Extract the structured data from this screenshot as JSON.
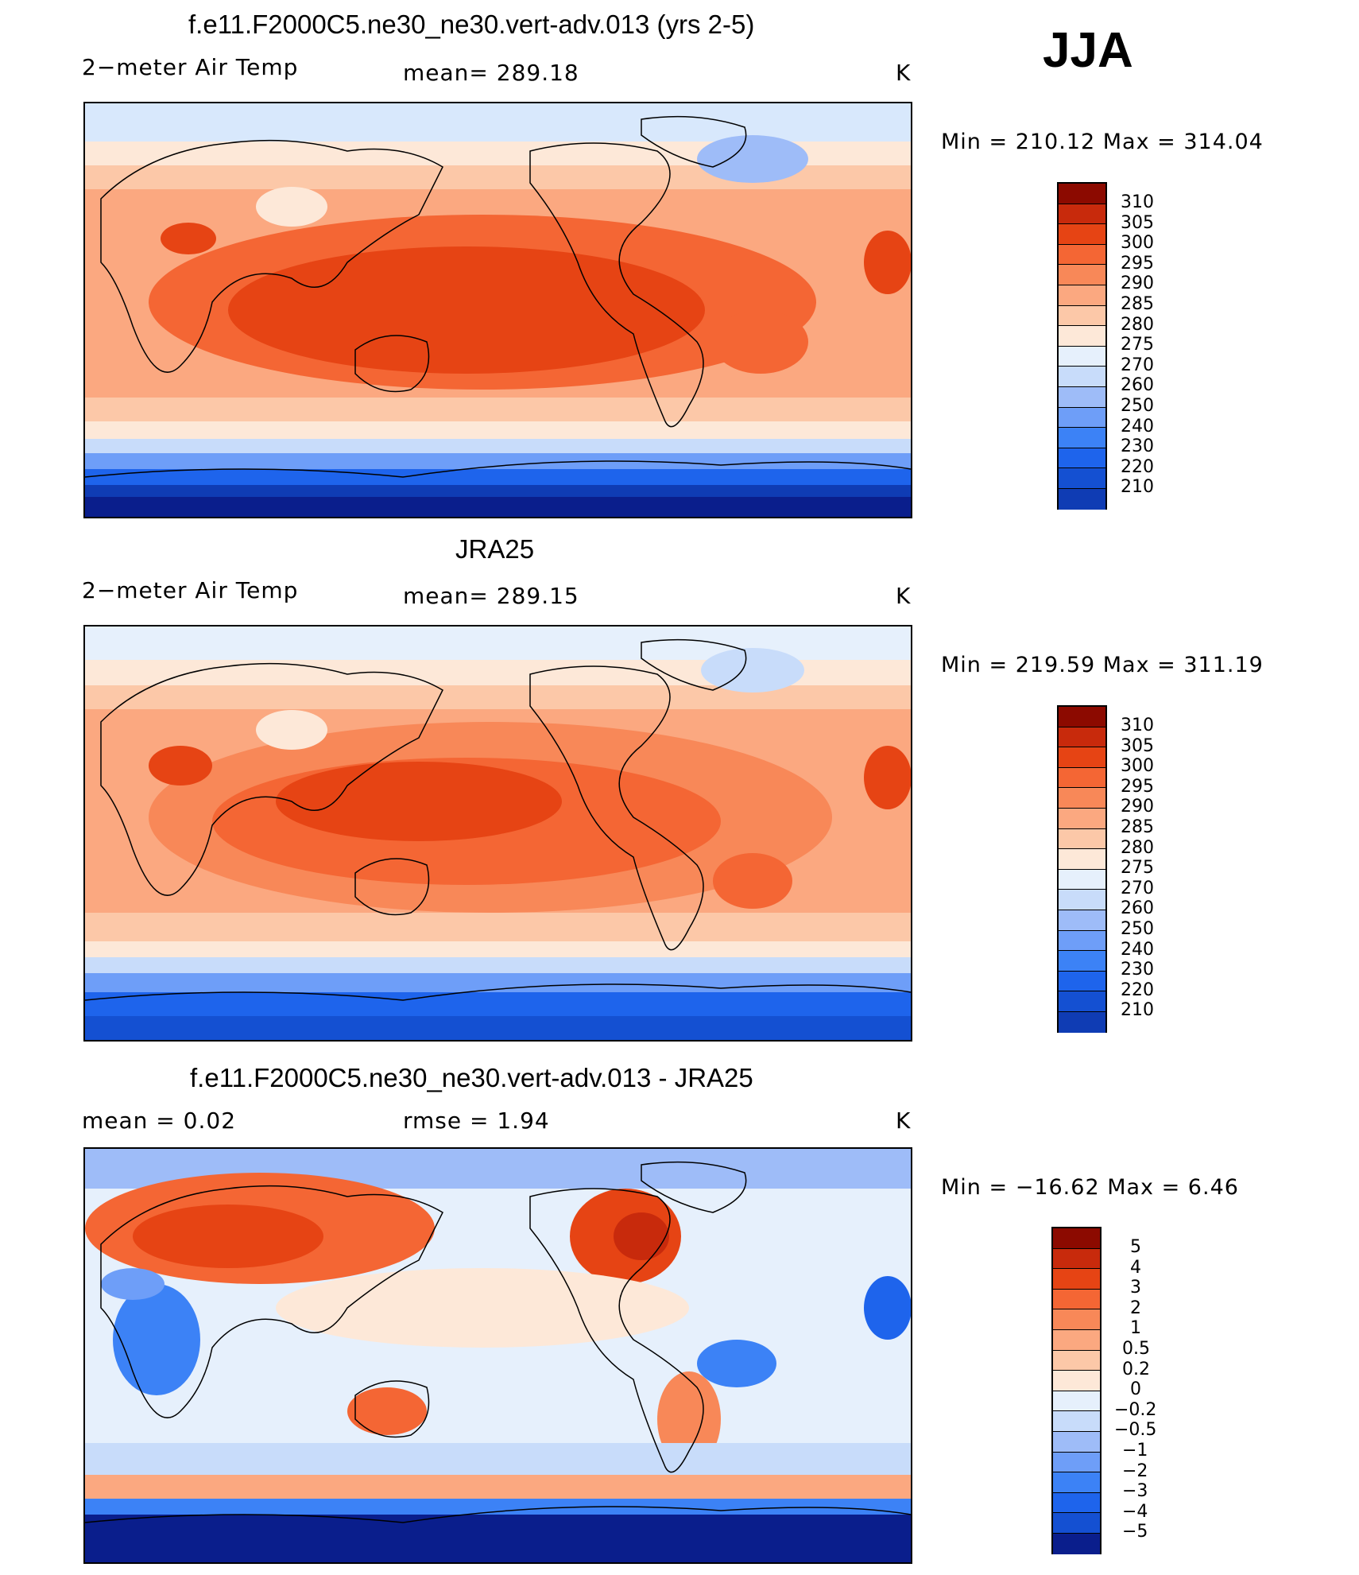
{
  "season": "JJA",
  "panels": [
    {
      "title": "f.e11.F2000C5.ne30_ne30.vert-adv.013 (yrs 2-5)",
      "left_label": "2−meter Air Temp",
      "center_label": "mean=  289.18",
      "units": "K",
      "minmax": "Min  =  210.12  Max  =  314.04",
      "colorbar_labels": [
        "310",
        "305",
        "300",
        "295",
        "290",
        "285",
        "280",
        "275",
        "270",
        "260",
        "250",
        "240",
        "230",
        "220",
        "210"
      ],
      "map_kind": "abs"
    },
    {
      "title": "JRA25",
      "left_label": "2−meter Air Temp",
      "center_label": "mean=  289.15",
      "units": "K",
      "minmax": "Min  =  219.59  Max  =  311.19",
      "colorbar_labels": [
        "310",
        "305",
        "300",
        "295",
        "290",
        "285",
        "280",
        "275",
        "270",
        "260",
        "250",
        "240",
        "230",
        "220",
        "210"
      ],
      "map_kind": "abs"
    },
    {
      "title": "f.e11.F2000C5.ne30_ne30.vert-adv.013 - JRA25",
      "left_label": "mean  =      0.02",
      "center_label": "rmse  =      1.94",
      "units": "K",
      "minmax": "Min  =  −16.62  Max  =      6.46",
      "colorbar_labels": [
        "5",
        "4",
        "3",
        "2",
        "1",
        "0.5",
        "0.2",
        "0",
        "−0.2",
        "−0.5",
        "−1",
        "−2",
        "−3",
        "−4",
        "−5"
      ],
      "map_kind": "diff"
    }
  ],
  "colormap": [
    "#0a1e8c",
    "#0f3cb4",
    "#1450d2",
    "#1e64ec",
    "#3c82f6",
    "#6e9ef8",
    "#9ebcf8",
    "#c8dcfa",
    "#e6f0fc",
    "#fde8d8",
    "#fcc8a8",
    "#fba880",
    "#f88858",
    "#f46634",
    "#e64414",
    "#c82a0c",
    "#8c0a00"
  ]
}
